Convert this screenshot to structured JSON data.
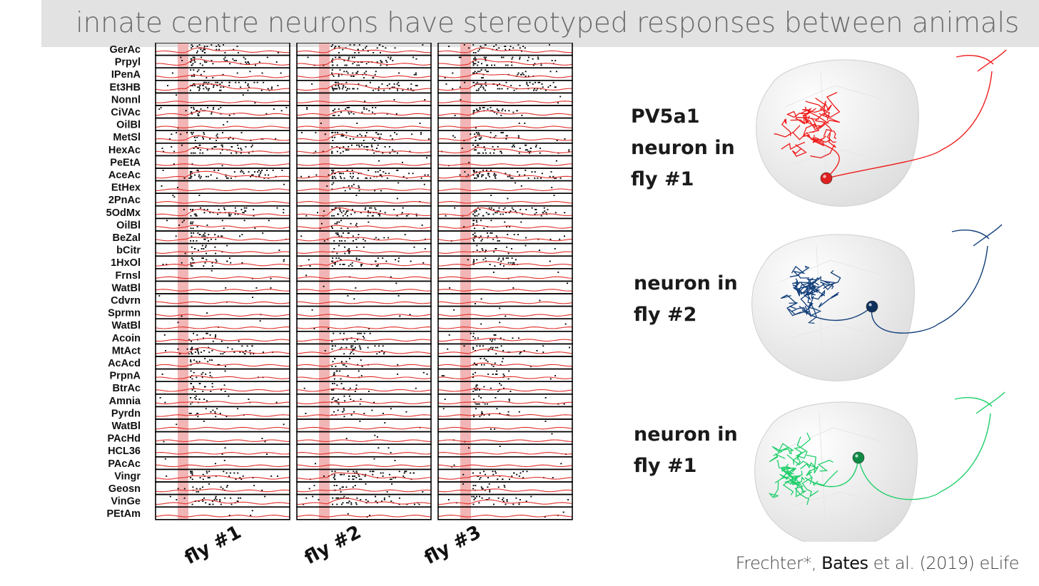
{
  "title": "innate centre neurons have stereotyped responses between animals",
  "raster": {
    "odors": [
      "GerAc",
      "Prpyl",
      "IPenA",
      "Et3HB",
      "Nonnl",
      "CiVAc",
      "OilBl",
      "MetSl",
      "HexAc",
      "PeEtA",
      "AceAc",
      "EtHex",
      "2PnAc",
      "5OdMx",
      "OilBl",
      "BeZal",
      "bCitr",
      "1HxOl",
      "Frnsl",
      "WatBl",
      "Cdvrn",
      "Sprmn",
      "WatBl",
      "Acoin",
      "MtAct",
      "AcAcd",
      "PrpnA",
      "BtrAc",
      "Amnia",
      "Pyrdn",
      "WatBl",
      "PAcHd",
      "HCL36",
      "PAcAc",
      "Vingr",
      "Geosn",
      "VinGe",
      "PEtAm"
    ],
    "panels": [
      {
        "label": "fly #1",
        "responses": [
          2,
          3,
          1,
          4,
          0,
          2,
          0,
          2,
          3,
          0,
          4,
          0,
          0,
          3,
          1,
          2,
          1,
          2,
          0,
          0,
          0,
          0,
          0,
          1,
          3,
          1,
          1,
          1,
          1,
          1,
          0,
          0,
          0,
          0,
          2,
          1,
          2,
          0
        ]
      },
      {
        "label": "fly #2",
        "responses": [
          2,
          3,
          2,
          4,
          0,
          2,
          0,
          3,
          3,
          0,
          4,
          1,
          0,
          4,
          1,
          2,
          1,
          3,
          0,
          0,
          0,
          0,
          0,
          1,
          2,
          1,
          1,
          1,
          1,
          1,
          0,
          0,
          0,
          0,
          4,
          1,
          3,
          0
        ]
      },
      {
        "label": "fly #3",
        "responses": [
          2,
          3,
          2,
          4,
          0,
          2,
          0,
          2,
          3,
          0,
          4,
          0,
          0,
          4,
          1,
          2,
          1,
          2,
          0,
          0,
          0,
          0,
          0,
          1,
          2,
          1,
          1,
          1,
          1,
          1,
          0,
          0,
          0,
          0,
          2,
          1,
          2,
          0
        ]
      }
    ],
    "colors": {
      "trace": "#e0302a",
      "stimulus_band": "#f2b5b5",
      "spikes": "#000000"
    }
  },
  "neurons": [
    {
      "label_lines": [
        "PV5a1",
        "neuron in",
        "fly #1"
      ],
      "color": "#ee1c1c",
      "soma_color": "#e02020"
    },
    {
      "label_lines": [
        "neuron in",
        "fly #2"
      ],
      "color": "#123f7a",
      "soma_color": "#0d2f5c"
    },
    {
      "label_lines": [
        "neuron in",
        "fly #1"
      ],
      "color": "#20cf6b",
      "soma_color": "#0e8a45"
    }
  ],
  "citation": {
    "pre": "Frechter*, ",
    "bold": "Bates",
    "post": " et al. (2019) eLife"
  }
}
